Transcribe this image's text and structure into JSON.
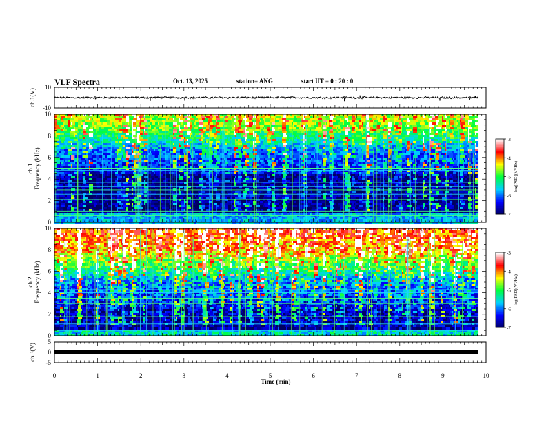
{
  "header": {
    "title": "VLF Spectra",
    "date": "Oct. 13, 2025",
    "station": "station= ANG",
    "start": "start  UT =   0  : 20 : 0"
  },
  "chart_data": [
    {
      "type": "line",
      "panel": "ch1-waveform",
      "ylabel": "ch.1(V)",
      "ylim": [
        -10,
        10
      ],
      "y_ticks": [
        "10",
        "-10"
      ],
      "xlim": [
        0,
        10
      ],
      "x_data_end": 9.82,
      "baseline_value": 0,
      "spikes": [
        {
          "x": 0.95,
          "y": -1.6
        },
        {
          "x": 2.22,
          "y": -3.2
        },
        {
          "x": 3.02,
          "y": -3.0
        },
        {
          "x": 6.72,
          "y": -3.5
        },
        {
          "x": 7.08,
          "y": 2.2
        },
        {
          "x": 8.93,
          "y": -3.0
        },
        {
          "x": 9.62,
          "y": -2.6
        },
        {
          "x": 9.75,
          "y": 1.6
        }
      ]
    },
    {
      "type": "heatmap",
      "panel": "ch1-spectrogram",
      "ylabel": "Frequency (kHz)",
      "channel_label": "ch.1",
      "ylim": [
        0,
        10
      ],
      "y_ticks": [
        "0",
        "2",
        "4",
        "6",
        "8",
        "10"
      ],
      "xlim": [
        0,
        10
      ],
      "x_data_end": 9.82,
      "colorbar": {
        "label": "log(PSD)(V²/Hz)",
        "range": [
          -7,
          -3
        ],
        "ticks": [
          "-3",
          "-4",
          "-5",
          "-6",
          "-7"
        ],
        "colors": [
          "#000060",
          "#0000ff",
          "#00d0ff",
          "#00ff40",
          "#ffff00",
          "#ff0000",
          "#ffffff"
        ]
      },
      "horizontal_lines_khz": [
        0.3,
        0.6,
        1.0,
        1.5,
        2.1,
        2.6,
        3.0,
        3.3,
        3.7,
        4.8,
        5.0
      ]
    },
    {
      "type": "heatmap",
      "panel": "ch2-spectrogram",
      "ylabel": "Frequency (kHz)",
      "channel_label": "ch.2",
      "ylim": [
        0,
        10
      ],
      "y_ticks": [
        "0",
        "2",
        "4",
        "6",
        "8",
        "10"
      ],
      "xlim": [
        0,
        10
      ],
      "x_data_end": 9.82,
      "colorbar": {
        "label": "log(PSD)(V²/Hz)",
        "range": [
          -7,
          -3
        ],
        "ticks": [
          "-3",
          "-4",
          "-5",
          "-6",
          "-7"
        ],
        "colors": [
          "#000060",
          "#0000ff",
          "#00d0ff",
          "#00ff40",
          "#ffff00",
          "#ff0000",
          "#ffffff"
        ]
      },
      "horizontal_lines_khz": [
        0.5,
        1.1,
        1.8,
        2.4,
        3.0,
        3.5,
        4.0,
        4.3
      ]
    },
    {
      "type": "line",
      "panel": "ch3-waveform",
      "ylabel": "ch.3(V)",
      "ylim": [
        -5,
        5
      ],
      "y_ticks": [
        "5",
        "0",
        "-5"
      ],
      "xlim": [
        0,
        10
      ],
      "x_data_end": 9.82,
      "baseline_value": 0,
      "xlabel": "Time (min)",
      "x_ticks": [
        "0",
        "1",
        "2",
        "3",
        "4",
        "5",
        "6",
        "7",
        "8",
        "9",
        "10"
      ]
    }
  ]
}
